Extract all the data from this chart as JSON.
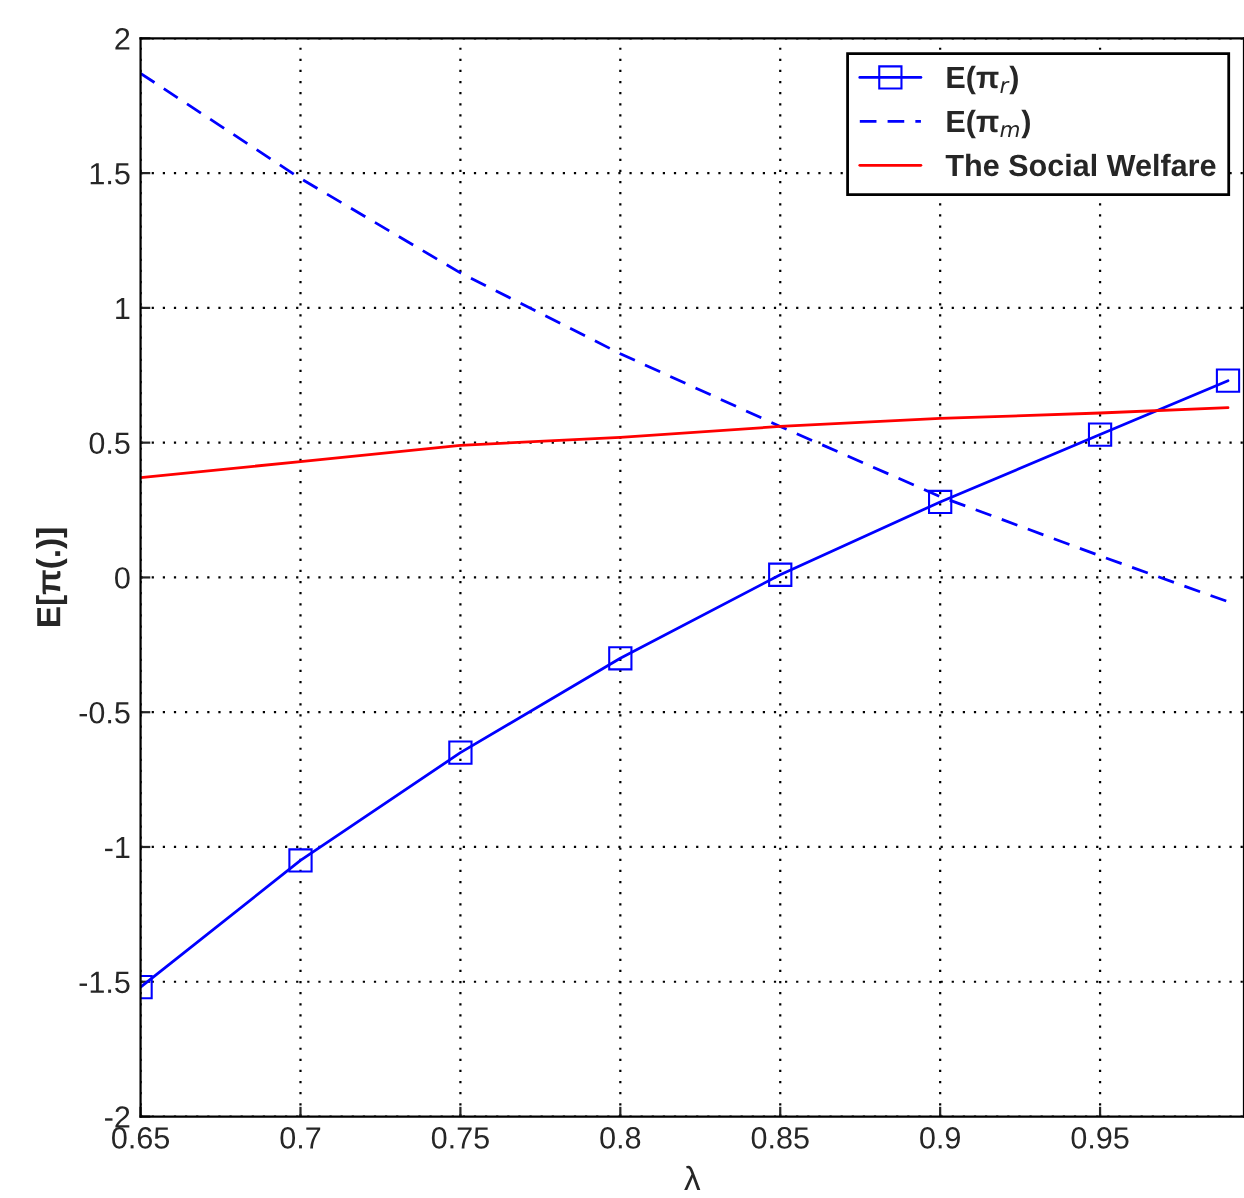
{
  "chart_data": {
    "type": "line",
    "xlabel": "λ",
    "ylabel": "E[π(.)]",
    "x": [
      0.65,
      0.7,
      0.75,
      0.8,
      0.85,
      0.9,
      0.95,
      0.99
    ],
    "series": [
      {
        "name": "E(π$_{r}$)",
        "color": "#0000ff",
        "marker": "square",
        "line_style": "solid",
        "values": [
          -1.52,
          -1.05,
          -0.65,
          -0.3,
          0.01,
          0.28,
          0.53,
          0.73
        ]
      },
      {
        "name": "E(π$_{m}$)",
        "color": "#0000ff",
        "marker": "none",
        "line_style": "dashed",
        "values": [
          1.87,
          1.48,
          1.13,
          0.83,
          0.56,
          0.3,
          0.08,
          -0.09
        ]
      },
      {
        "name": "The Social Welfare",
        "color": "#ff0000",
        "marker": "none",
        "line_style": "solid",
        "values": [
          0.37,
          0.43,
          0.49,
          0.52,
          0.56,
          0.59,
          0.61,
          0.63
        ]
      }
    ],
    "xlim": [
      0.65,
      0.995
    ],
    "ylim": [
      -2,
      2
    ],
    "xticks": [
      0.65,
      0.7,
      0.75,
      0.8,
      0.85,
      0.9,
      0.95
    ],
    "yticks": [
      -2,
      -1.5,
      -1,
      -0.5,
      0,
      0.5,
      1,
      1.5,
      2
    ],
    "grid": true,
    "legend": "top right"
  }
}
